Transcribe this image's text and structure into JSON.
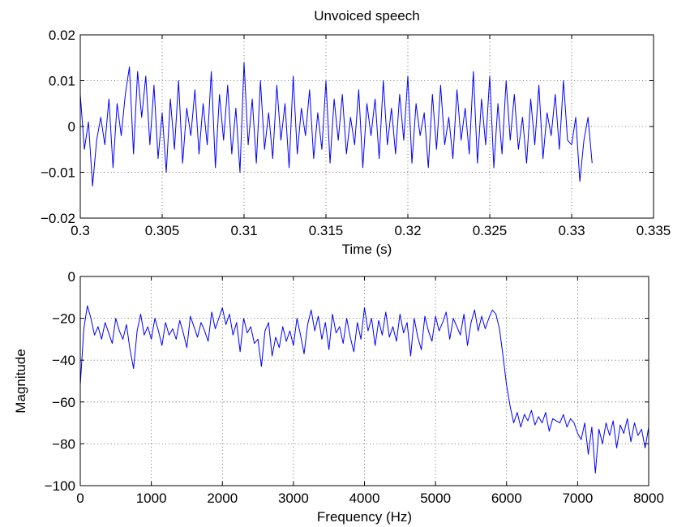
{
  "chart_data": [
    {
      "type": "line",
      "title": "Unvoiced speech",
      "xlabel": "Time (s)",
      "ylabel": "",
      "xlim": [
        0.3,
        0.335
      ],
      "ylim": [
        -0.02,
        0.02
      ],
      "xticks": [
        0.3,
        0.305,
        0.31,
        0.315,
        0.32,
        0.325,
        0.33,
        0.335
      ],
      "xtick_labels": [
        "0.3",
        "0.305",
        "0.31",
        "0.315",
        "0.32",
        "0.325",
        "0.33",
        "0.335"
      ],
      "yticks": [
        -0.02,
        -0.01,
        0,
        0.01,
        0.02
      ],
      "ytick_labels": [
        "−0.02",
        "−0.01",
        "0",
        "0.01",
        "0.02"
      ],
      "grid": true,
      "series": [
        {
          "color": "#0000ff",
          "x": [
            0.3,
            0.30025,
            0.3005,
            0.30075,
            0.301,
            0.30125,
            0.3015,
            0.30175,
            0.302,
            0.30225,
            0.3025,
            0.30275,
            0.303,
            0.30325,
            0.3035,
            0.30375,
            0.304,
            0.30425,
            0.3045,
            0.30475,
            0.305,
            0.30525,
            0.3055,
            0.30575,
            0.306,
            0.30625,
            0.3065,
            0.30675,
            0.307,
            0.30725,
            0.3075,
            0.30775,
            0.308,
            0.30825,
            0.3085,
            0.30875,
            0.309,
            0.30925,
            0.3095,
            0.30975,
            0.31,
            0.31025,
            0.3105,
            0.31075,
            0.311,
            0.31125,
            0.3115,
            0.31175,
            0.312,
            0.31225,
            0.3125,
            0.31275,
            0.313,
            0.31325,
            0.3135,
            0.31375,
            0.314,
            0.31425,
            0.3145,
            0.31475,
            0.315,
            0.31525,
            0.3155,
            0.31575,
            0.316,
            0.31625,
            0.3165,
            0.31675,
            0.317,
            0.31725,
            0.3175,
            0.31775,
            0.318,
            0.31825,
            0.3185,
            0.31875,
            0.319,
            0.31925,
            0.3195,
            0.31975,
            0.32,
            0.32025,
            0.3205,
            0.32075,
            0.321,
            0.32125,
            0.3215,
            0.32175,
            0.322,
            0.32225,
            0.3225,
            0.32275,
            0.323,
            0.32325,
            0.3235,
            0.32375,
            0.324,
            0.32425,
            0.3245,
            0.32475,
            0.325,
            0.32525,
            0.3255,
            0.32575,
            0.326,
            0.32625,
            0.3265,
            0.32675,
            0.327,
            0.32725,
            0.3275,
            0.32775,
            0.328,
            0.32825,
            0.3285,
            0.32875,
            0.329,
            0.32925,
            0.3295,
            0.32975,
            0.33,
            0.33025,
            0.3305,
            0.33075,
            0.331,
            0.33125
          ],
          "y": [
            0.007,
            -0.005,
            0.001,
            -0.013,
            -0.003,
            0.002,
            -0.004,
            0.006,
            -0.009,
            0.005,
            -0.002,
            0.007,
            0.013,
            -0.006,
            0.012,
            0.002,
            0.011,
            -0.004,
            0.009,
            -0.007,
            0.003,
            -0.01,
            0.006,
            -0.005,
            0.01,
            -0.008,
            0.004,
            -0.002,
            0.008,
            -0.006,
            0.005,
            -0.004,
            0.012,
            -0.009,
            0.007,
            -0.003,
            0.009,
            -0.006,
            0.004,
            -0.01,
            0.014,
            -0.004,
            0.006,
            -0.008,
            0.01,
            -0.005,
            0.003,
            -0.007,
            0.009,
            -0.003,
            0.005,
            -0.009,
            0.011,
            -0.006,
            0.004,
            -0.002,
            0.008,
            -0.007,
            0.003,
            -0.005,
            0.01,
            -0.008,
            0.006,
            -0.003,
            0.007,
            -0.006,
            0.002,
            -0.004,
            0.008,
            -0.009,
            0.005,
            -0.002,
            0.006,
            -0.007,
            0.01,
            -0.004,
            0.004,
            -0.006,
            0.007,
            -0.003,
            0.011,
            -0.008,
            0.005,
            -0.002,
            0.003,
            -0.009,
            0.007,
            -0.005,
            0.009,
            -0.004,
            0.002,
            -0.007,
            0.008,
            -0.003,
            0.004,
            -0.006,
            0.012,
            -0.008,
            0.006,
            -0.004,
            0.011,
            -0.009,
            0.005,
            -0.006,
            0.01,
            -0.003,
            0.007,
            -0.005,
            0.002,
            -0.008,
            0.006,
            -0.004,
            0.009,
            -0.007,
            0.003,
            -0.002,
            0.007,
            -0.005,
            0.01,
            -0.003,
            -0.004,
            0.002,
            -0.012,
            -0.003,
            0.002,
            -0.008
          ]
        }
      ]
    },
    {
      "type": "line",
      "title": "",
      "xlabel": "Frequency (Hz)",
      "ylabel": "Magnitude",
      "xlim": [
        0,
        8000
      ],
      "ylim": [
        -100,
        0
      ],
      "xticks": [
        0,
        1000,
        2000,
        3000,
        4000,
        5000,
        6000,
        7000,
        8000
      ],
      "xtick_labels": [
        "0",
        "1000",
        "2000",
        "3000",
        "4000",
        "5000",
        "6000",
        "7000",
        "8000"
      ],
      "yticks": [
        -100,
        -80,
        -60,
        -40,
        -20,
        0
      ],
      "ytick_labels": [
        "−100",
        "−80",
        "−60",
        "−40",
        "−20",
        "0"
      ],
      "grid": true,
      "series": [
        {
          "color": "#0000ff",
          "x": [
            0,
            50,
            100,
            150,
            200,
            250,
            300,
            350,
            400,
            450,
            500,
            550,
            600,
            650,
            700,
            750,
            800,
            850,
            900,
            950,
            1000,
            1050,
            1100,
            1150,
            1200,
            1250,
            1300,
            1350,
            1400,
            1450,
            1500,
            1550,
            1600,
            1650,
            1700,
            1750,
            1800,
            1850,
            1900,
            1950,
            2000,
            2050,
            2100,
            2150,
            2200,
            2250,
            2300,
            2350,
            2400,
            2450,
            2500,
            2550,
            2600,
            2650,
            2700,
            2750,
            2800,
            2850,
            2900,
            2950,
            3000,
            3050,
            3100,
            3150,
            3200,
            3250,
            3300,
            3350,
            3400,
            3450,
            3500,
            3550,
            3600,
            3650,
            3700,
            3750,
            3800,
            3850,
            3900,
            3950,
            4000,
            4050,
            4100,
            4150,
            4200,
            4250,
            4300,
            4350,
            4400,
            4450,
            4500,
            4550,
            4600,
            4650,
            4700,
            4750,
            4800,
            4850,
            4900,
            4950,
            5000,
            5050,
            5100,
            5150,
            5200,
            5250,
            5300,
            5350,
            5400,
            5450,
            5500,
            5550,
            5600,
            5650,
            5700,
            5750,
            5800,
            5850,
            5900,
            5950,
            6000,
            6050,
            6100,
            6150,
            6200,
            6250,
            6300,
            6350,
            6400,
            6450,
            6500,
            6550,
            6600,
            6650,
            6700,
            6750,
            6800,
            6850,
            6900,
            6950,
            7000,
            7050,
            7100,
            7150,
            7200,
            7250,
            7300,
            7350,
            7400,
            7450,
            7500,
            7550,
            7600,
            7650,
            7700,
            7750,
            7800,
            7850,
            7900,
            7950,
            8000
          ],
          "y": [
            -52,
            -25,
            -14,
            -20,
            -28,
            -24,
            -30,
            -22,
            -27,
            -32,
            -20,
            -26,
            -30,
            -23,
            -35,
            -44,
            -26,
            -18,
            -28,
            -24,
            -30,
            -20,
            -26,
            -33,
            -22,
            -28,
            -25,
            -30,
            -21,
            -27,
            -34,
            -19,
            -24,
            -29,
            -22,
            -26,
            -31,
            -17,
            -25,
            -20,
            -15,
            -23,
            -18,
            -28,
            -22,
            -36,
            -20,
            -27,
            -24,
            -32,
            -30,
            -43,
            -26,
            -22,
            -38,
            -29,
            -34,
            -24,
            -31,
            -26,
            -33,
            -20,
            -28,
            -37,
            -23,
            -16,
            -26,
            -19,
            -30,
            -22,
            -35,
            -18,
            -27,
            -24,
            -32,
            -20,
            -29,
            -36,
            -22,
            -30,
            -15,
            -26,
            -20,
            -33,
            -21,
            -28,
            -17,
            -29,
            -24,
            -31,
            -18,
            -27,
            -22,
            -38,
            -20,
            -29,
            -35,
            -19,
            -26,
            -31,
            -19,
            -26,
            -22,
            -17,
            -30,
            -20,
            -24,
            -28,
            -18,
            -33,
            -22,
            -16,
            -26,
            -19,
            -25,
            -20,
            -16,
            -18,
            -25,
            -38,
            -52,
            -62,
            -70,
            -65,
            -72,
            -66,
            -69,
            -64,
            -71,
            -67,
            -70,
            -65,
            -74,
            -68,
            -69,
            -70,
            -66,
            -72,
            -68,
            -70,
            -75,
            -78,
            -70,
            -85,
            -72,
            -94,
            -73,
            -80,
            -70,
            -76,
            -69,
            -82,
            -71,
            -75,
            -68,
            -79,
            -70,
            -76,
            -73,
            -82,
            -72
          ]
        }
      ]
    }
  ]
}
